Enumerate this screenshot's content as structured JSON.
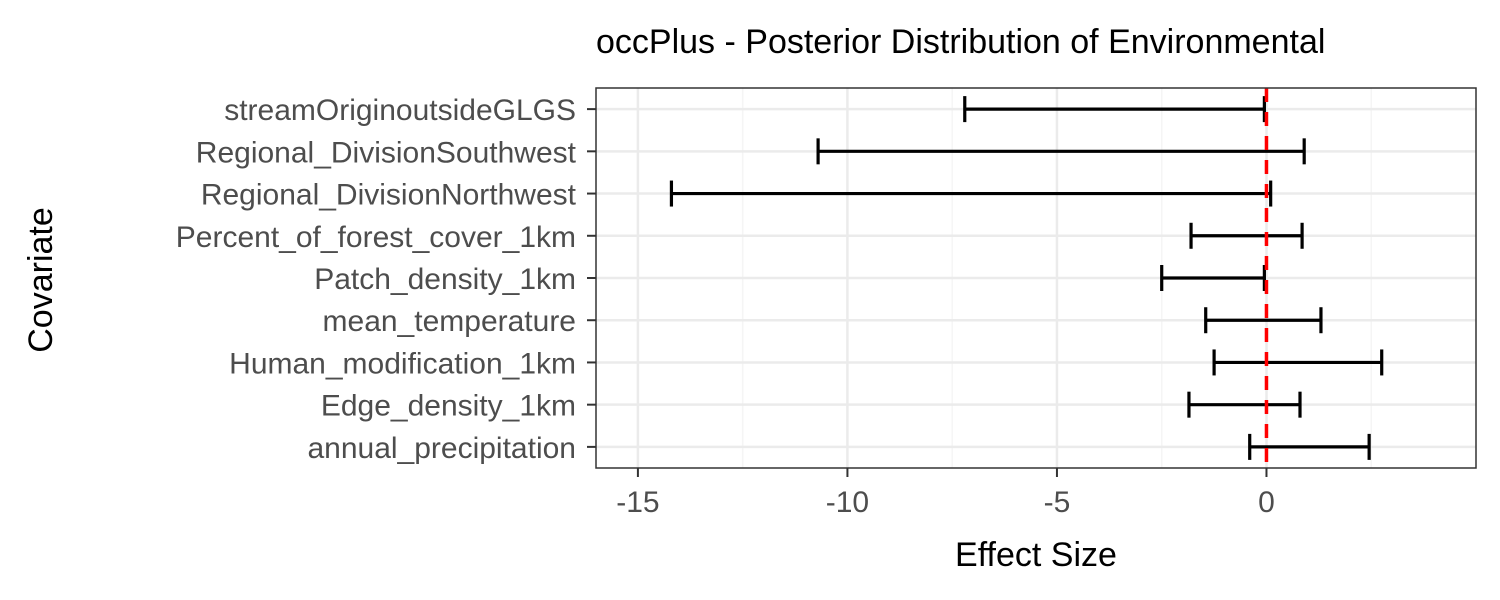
{
  "chart_data": {
    "type": "errorbar",
    "title": "occPlus - Posterior Distribution of Environmental",
    "xlabel": "Effect Size",
    "ylabel": "Covariate",
    "xlim": [
      -16,
      5
    ],
    "xticks": [
      -15,
      -10,
      -5,
      0
    ],
    "reference_line": {
      "x": 0,
      "color": "#ff0000",
      "style": "dashed"
    },
    "grid": true,
    "categories": [
      "streamOriginoutsideGLGS",
      "Regional_DivisionSouthwest",
      "Regional_DivisionNorthwest",
      "Percent_of_forest_cover_1km",
      "Patch_density_1km",
      "mean_temperature",
      "Human_modification_1km",
      "Edge_density_1km",
      "annual_precipitation"
    ],
    "intervals": [
      {
        "lower": -7.2,
        "upper": -0.05
      },
      {
        "lower": -10.7,
        "upper": 0.9
      },
      {
        "lower": -14.2,
        "upper": 0.1
      },
      {
        "lower": -1.8,
        "upper": 0.85
      },
      {
        "lower": -2.5,
        "upper": -0.05
      },
      {
        "lower": -1.45,
        "upper": 1.3
      },
      {
        "lower": -1.25,
        "upper": 2.75
      },
      {
        "lower": -1.85,
        "upper": 0.8
      },
      {
        "lower": -0.4,
        "upper": 2.45
      }
    ]
  },
  "colors": {
    "bar": "#000000",
    "reference": "#ff0000",
    "grid_major": "#ebebeb",
    "grid_minor": "#f5f5f5",
    "panel_border": "#333333",
    "tick_text": "#4d4d4d"
  }
}
